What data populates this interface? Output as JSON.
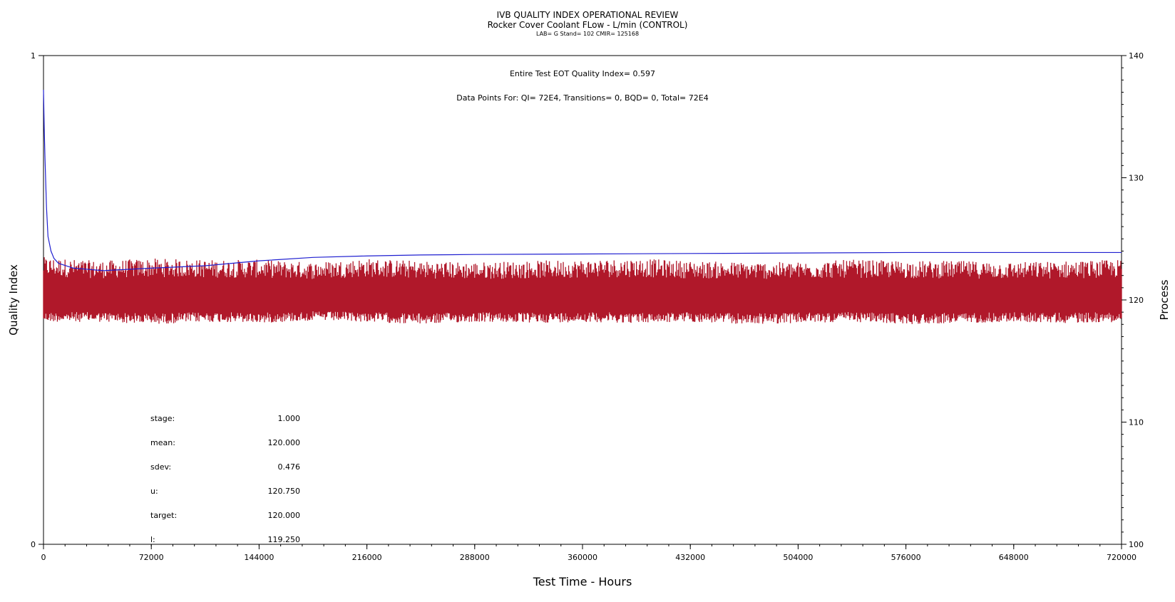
{
  "chart_data": {
    "type": "line",
    "title": "IVB QUALITY INDEX OPERATIONAL REVIEW",
    "subtitle": "Rocker Cover Coolant FLow - L/min (CONTROL)",
    "subtitle2": "LAB= G Stand= 102 CMIR= 125168",
    "xlabel": "Test Time - Hours",
    "ylabel": "Quality Index",
    "y2label": "Process",
    "xlim": [
      0,
      720000
    ],
    "ylim": [
      0,
      1
    ],
    "y2lim": [
      100,
      140
    ],
    "x_ticks": [
      0,
      72000,
      144000,
      216000,
      288000,
      360000,
      432000,
      504000,
      576000,
      648000,
      720000
    ],
    "y_ticks": [
      0,
      1
    ],
    "y2_ticks": [
      100,
      110,
      120,
      130,
      140
    ],
    "annotations": {
      "eot": "Entire Test EOT Quality Index=   0.597",
      "points": "Data Points For: QI=  72E4, Transitions=     0, BQD=     0, Total=  72E4"
    },
    "stats": [
      {
        "label": "stage:",
        "value": "1.000"
      },
      {
        "label": "mean:",
        "value": "120.000"
      },
      {
        "label": "sdev:",
        "value": "0.476"
      },
      {
        "label": "u:",
        "value": "120.750"
      },
      {
        "label": "target:",
        "value": "120.000"
      },
      {
        "label": "l:",
        "value": "119.250"
      }
    ],
    "series": [
      {
        "axis": "right",
        "color": "#b0182a",
        "x": [
          0,
          36000,
          72000,
          108000,
          144000,
          180000,
          216000,
          252000,
          288000,
          324000,
          360000,
          396000,
          432000,
          468000,
          504000,
          540000,
          576000,
          612000,
          648000,
          684000,
          720000
        ],
        "y": [
          120.0,
          120.0,
          120.0,
          120.0,
          120.0,
          120.0,
          120.0,
          120.0,
          120.0,
          120.0,
          120.0,
          120.0,
          120.0,
          120.0,
          120.0,
          120.0,
          120.0,
          120.0,
          120.0,
          120.0,
          120.0
        ],
        "band_low": [
          118.2,
          118.2,
          118.0,
          118.2,
          118.1,
          118.3,
          118.2,
          118.0,
          118.2,
          118.1,
          118.2,
          118.1,
          118.2,
          118.0,
          118.1,
          118.2,
          118.0,
          118.1,
          118.2,
          118.1,
          118.2
        ],
        "band_high": [
          123.5,
          123.2,
          123.4,
          123.3,
          123.3,
          123.1,
          123.4,
          123.2,
          123.1,
          123.2,
          123.3,
          123.4,
          123.2,
          123.1,
          123.1,
          123.3,
          123.2,
          123.2,
          123.1,
          123.2,
          123.3
        ]
      },
      {
        "axis": "left",
        "color": "#1f1fd0",
        "x": [
          0,
          500,
          1000,
          2000,
          3000,
          5000,
          7000,
          10000,
          20000,
          40000,
          72000,
          108000,
          144000,
          180000,
          216000,
          252000,
          288000,
          360000,
          432000,
          504000,
          576000,
          648000,
          720000
        ],
        "y": [
          0.93,
          0.85,
          0.79,
          0.69,
          0.63,
          0.6,
          0.585,
          0.575,
          0.565,
          0.56,
          0.565,
          0.57,
          0.58,
          0.587,
          0.59,
          0.592,
          0.593,
          0.594,
          0.595,
          0.596,
          0.597,
          0.597,
          0.597
        ]
      }
    ]
  }
}
